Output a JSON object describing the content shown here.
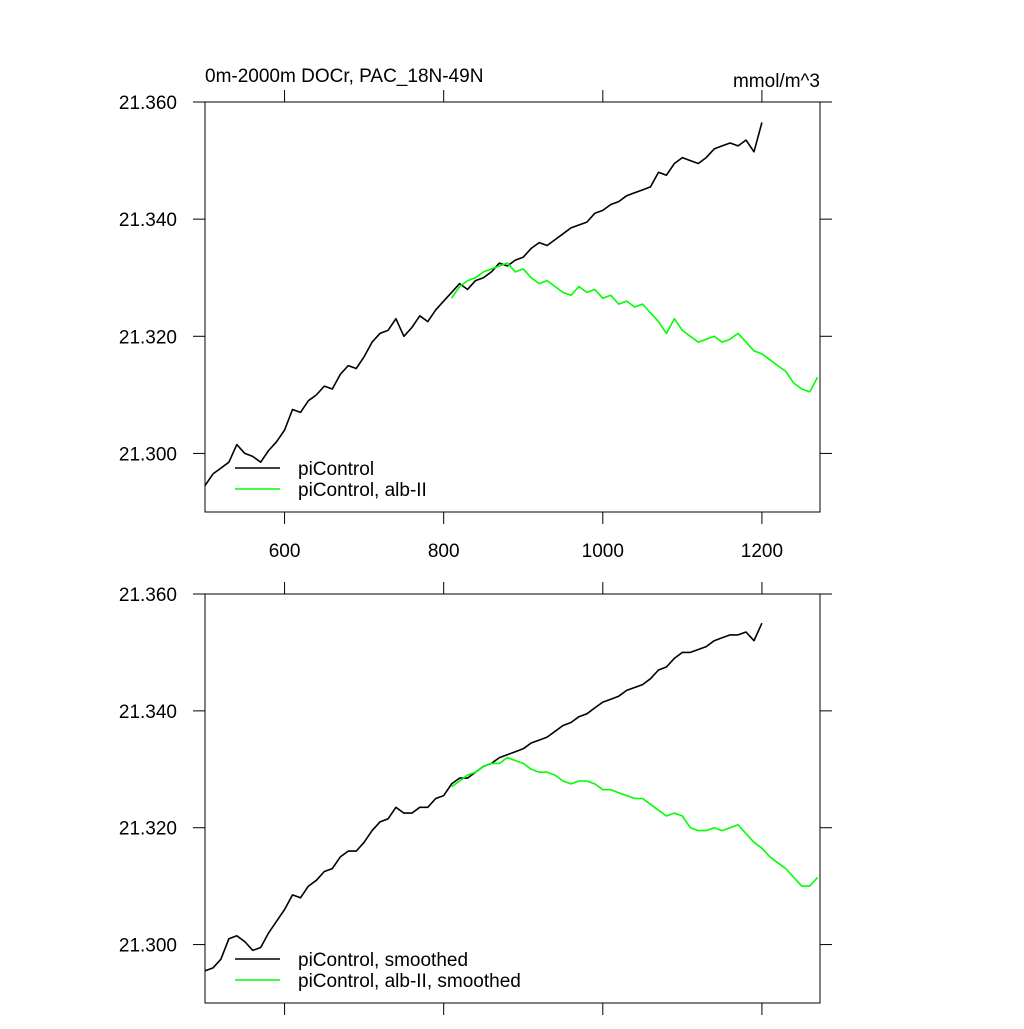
{
  "chart_data": [
    {
      "type": "line",
      "title": "0m-2000m DOCr, PAC_18N-49N",
      "right_title": "mmol/m^3",
      "xlim": [
        500,
        1273
      ],
      "ylim": [
        21.29,
        21.36
      ],
      "xticks": [
        600,
        800,
        1000,
        1200
      ],
      "xtick_labels": true,
      "yticks": [
        {
          "value": 21.3,
          "label": "21.300"
        },
        {
          "value": 21.32,
          "label": "21.320"
        },
        {
          "value": 21.34,
          "label": "21.340"
        },
        {
          "value": 21.36,
          "label": "21.360"
        }
      ],
      "legend": "lower left",
      "x": [
        500,
        510,
        520,
        530,
        540,
        550,
        560,
        570,
        580,
        590,
        600,
        610,
        620,
        630,
        640,
        650,
        660,
        670,
        680,
        690,
        700,
        710,
        720,
        730,
        740,
        750,
        760,
        770,
        780,
        790,
        800,
        810,
        820,
        830,
        840,
        850,
        860,
        870,
        880,
        890,
        900,
        910,
        920,
        930,
        940,
        950,
        960,
        970,
        980,
        990,
        1000,
        1010,
        1020,
        1030,
        1040,
        1050,
        1060,
        1070,
        1080,
        1090,
        1100,
        1110,
        1120,
        1130,
        1140,
        1150,
        1160,
        1170,
        1180,
        1190,
        1200,
        1210,
        1220,
        1230,
        1240,
        1250,
        1260,
        1270
      ],
      "series": [
        {
          "name": "piControl",
          "color": "#000000",
          "values": [
            21.2945,
            21.2965,
            21.2975,
            21.2985,
            21.3015,
            21.3,
            21.2995,
            21.2985,
            21.3005,
            21.302,
            21.304,
            21.3075,
            21.307,
            21.309,
            21.31,
            21.3115,
            21.311,
            21.3135,
            21.315,
            21.3145,
            21.3165,
            21.319,
            21.3205,
            21.321,
            21.323,
            21.32,
            21.3215,
            21.3235,
            21.3225,
            21.3245,
            21.326,
            21.3275,
            21.329,
            21.328,
            21.3295,
            21.33,
            21.331,
            21.3325,
            21.332,
            21.333,
            21.3335,
            21.335,
            21.336,
            21.3355,
            21.3365,
            21.3375,
            21.3385,
            21.339,
            21.3395,
            21.341,
            21.3415,
            21.3425,
            21.343,
            21.344,
            21.3445,
            21.345,
            21.3455,
            21.348,
            21.3475,
            21.3495,
            21.3505,
            21.35,
            21.3495,
            21.3505,
            21.352,
            21.3525,
            21.353,
            21.3525,
            21.3535,
            21.3515,
            21.3565,
            null,
            null,
            null,
            null,
            null,
            null,
            null
          ]
        },
        {
          "name": "piControl, alb-II",
          "color": "#00ff00",
          "values": [
            null,
            null,
            null,
            null,
            null,
            null,
            null,
            null,
            null,
            null,
            null,
            null,
            null,
            null,
            null,
            null,
            null,
            null,
            null,
            null,
            null,
            null,
            null,
            null,
            null,
            null,
            null,
            null,
            null,
            null,
            null,
            21.3265,
            21.3285,
            21.3295,
            21.33,
            21.331,
            21.3315,
            21.332,
            21.3325,
            21.331,
            21.3315,
            21.33,
            21.329,
            21.3295,
            21.3285,
            21.3275,
            21.327,
            21.3285,
            21.3275,
            21.328,
            21.3265,
            21.327,
            21.3255,
            21.326,
            21.325,
            21.3255,
            21.324,
            21.3225,
            21.3205,
            21.323,
            21.321,
            21.32,
            21.319,
            21.3195,
            21.32,
            21.319,
            21.3195,
            21.3205,
            21.319,
            21.3175,
            21.317,
            21.316,
            21.315,
            21.314,
            21.312,
            21.311,
            21.3105,
            21.313
          ]
        }
      ]
    },
    {
      "type": "line",
      "xlim": [
        500,
        1273
      ],
      "ylim": [
        21.29,
        21.36
      ],
      "xticks": [
        600,
        800,
        1000,
        1200
      ],
      "xtick_labels": false,
      "yticks": [
        {
          "value": 21.3,
          "label": "21.300"
        },
        {
          "value": 21.32,
          "label": "21.320"
        },
        {
          "value": 21.34,
          "label": "21.340"
        },
        {
          "value": 21.36,
          "label": "21.360"
        }
      ],
      "legend": "lower left",
      "x": [
        500,
        510,
        520,
        530,
        540,
        550,
        560,
        570,
        580,
        590,
        600,
        610,
        620,
        630,
        640,
        650,
        660,
        670,
        680,
        690,
        700,
        710,
        720,
        730,
        740,
        750,
        760,
        770,
        780,
        790,
        800,
        810,
        820,
        830,
        840,
        850,
        860,
        870,
        880,
        890,
        900,
        910,
        920,
        930,
        940,
        950,
        960,
        970,
        980,
        990,
        1000,
        1010,
        1020,
        1030,
        1040,
        1050,
        1060,
        1070,
        1080,
        1090,
        1100,
        1110,
        1120,
        1130,
        1140,
        1150,
        1160,
        1170,
        1180,
        1190,
        1200,
        1210,
        1220,
        1230,
        1240,
        1250,
        1260,
        1270
      ],
      "series": [
        {
          "name": "piControl, smoothed",
          "color": "#000000",
          "values": [
            21.2955,
            21.296,
            21.2975,
            21.301,
            21.3015,
            21.3005,
            21.299,
            21.2995,
            21.302,
            21.304,
            21.306,
            21.3085,
            21.308,
            21.31,
            21.311,
            21.3125,
            21.313,
            21.315,
            21.316,
            21.316,
            21.3175,
            21.3195,
            21.321,
            21.3215,
            21.3235,
            21.3225,
            21.3225,
            21.3235,
            21.3235,
            21.325,
            21.3255,
            21.3275,
            21.3285,
            21.3285,
            21.3295,
            21.3305,
            21.331,
            21.332,
            21.3325,
            21.333,
            21.3335,
            21.3345,
            21.335,
            21.3355,
            21.3365,
            21.3375,
            21.338,
            21.339,
            21.3395,
            21.3405,
            21.3415,
            21.342,
            21.3425,
            21.3435,
            21.344,
            21.3445,
            21.3455,
            21.347,
            21.3475,
            21.349,
            21.35,
            21.35,
            21.3505,
            21.351,
            21.352,
            21.3525,
            21.353,
            21.353,
            21.3535,
            21.352,
            21.355,
            null,
            null,
            null,
            null,
            null,
            null,
            null
          ]
        },
        {
          "name": "piControl, alb-II, smoothed",
          "color": "#00ff00",
          "values": [
            null,
            null,
            null,
            null,
            null,
            null,
            null,
            null,
            null,
            null,
            null,
            null,
            null,
            null,
            null,
            null,
            null,
            null,
            null,
            null,
            null,
            null,
            null,
            null,
            null,
            null,
            null,
            null,
            null,
            null,
            null,
            21.327,
            21.328,
            21.329,
            21.3295,
            21.3305,
            21.331,
            21.331,
            21.332,
            21.3315,
            21.331,
            21.33,
            21.3295,
            21.3295,
            21.329,
            21.328,
            21.3275,
            21.328,
            21.328,
            21.3275,
            21.3265,
            21.3265,
            21.326,
            21.3255,
            21.325,
            21.325,
            21.324,
            21.323,
            21.322,
            21.3225,
            21.322,
            21.32,
            21.3195,
            21.3195,
            21.32,
            21.3195,
            21.32,
            21.3205,
            21.319,
            21.3175,
            21.3165,
            21.315,
            21.314,
            21.313,
            21.3115,
            21.31,
            21.31,
            21.3115
          ]
        }
      ]
    }
  ]
}
